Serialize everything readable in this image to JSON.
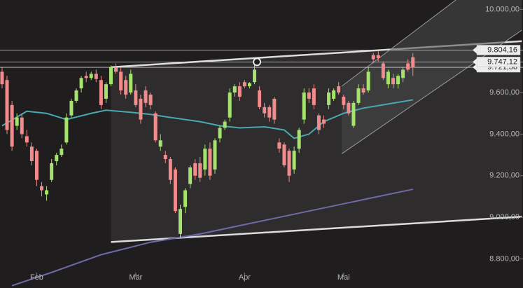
{
  "chart_data": {
    "type": "candlestick",
    "background": "#1f1d1d",
    "up_color": "#a6e36e",
    "down_color": "#f28b8b",
    "categories": [
      null,
      null,
      null,
      null,
      null,
      null,
      null,
      "Feb",
      null,
      null,
      null,
      null,
      null,
      null,
      null,
      null,
      null,
      null,
      null,
      null,
      null,
      null,
      null,
      null,
      null,
      null,
      null,
      "Mär",
      null,
      null,
      null,
      null,
      null,
      null,
      null,
      null,
      null,
      null,
      null,
      null,
      null,
      null,
      null,
      null,
      null,
      null,
      null,
      null,
      null,
      "Apr",
      null,
      null,
      null,
      null,
      null,
      null,
      null,
      null,
      null,
      null,
      null,
      null,
      null,
      null,
      null,
      null,
      null,
      null,
      null,
      "Mai",
      null,
      null,
      null,
      null,
      null,
      null,
      null,
      null,
      null,
      null,
      null,
      null,
      null,
      null
    ],
    "open": [
      9700,
      9660,
      9540,
      9440,
      9480,
      9390,
      9340,
      9320,
      9150,
      9110,
      9180,
      9270,
      9300,
      9360,
      9490,
      9560,
      9620,
      9680,
      9670,
      9690,
      9660,
      9570,
      9640,
      9720,
      9700,
      9660,
      9600,
      9610,
      9570,
      9610,
      9590,
      9500,
      9340,
      9300,
      9280,
      9230,
      8920,
      9050,
      9160,
      9260,
      9260,
      9230,
      9330,
      9230,
      9380,
      9430,
      9480,
      9600,
      9630,
      9650,
      9630,
      9650,
      9610,
      9530,
      9530,
      9570,
      9360,
      9350,
      9320,
      9230,
      9330,
      9470,
      9600,
      9620,
      9490,
      9470,
      9540,
      9570,
      9630,
      9580,
      9550,
      9440,
      9550,
      9620,
      9610,
      9780,
      9780,
      9740,
      9640,
      9670,
      9640,
      9670,
      9740,
      9770
    ],
    "high": [
      9720,
      9680,
      9560,
      9500,
      9500,
      9420,
      9360,
      9330,
      9170,
      9150,
      9280,
      9310,
      9350,
      9500,
      9570,
      9620,
      9680,
      9700,
      9700,
      9710,
      9680,
      9650,
      9730,
      9740,
      9720,
      9680,
      9710,
      9640,
      9590,
      9630,
      9600,
      9510,
      9400,
      9320,
      9290,
      9240,
      9060,
      9140,
      9250,
      9280,
      9290,
      9350,
      9360,
      9380,
      9440,
      9470,
      9620,
      9640,
      9650,
      9660,
      9650,
      9760,
      9630,
      9550,
      9540,
      9580,
      9380,
      9360,
      9330,
      9340,
      9430,
      9620,
      9620,
      9640,
      9500,
      9490,
      9620,
      9620,
      9650,
      9590,
      9560,
      9560,
      9640,
      9640,
      9720,
      9790,
      9800,
      9750,
      9710,
      9690,
      9690,
      9720,
      9760,
      9790
    ],
    "low": [
      9620,
      9400,
      9320,
      9420,
      9380,
      9340,
      9250,
      9150,
      9100,
      9080,
      9170,
      9250,
      9290,
      9350,
      9480,
      9550,
      9600,
      9650,
      9660,
      9650,
      9520,
      9550,
      9630,
      9690,
      9590,
      9570,
      9590,
      9530,
      9450,
      9530,
      9520,
      9360,
      9320,
      9260,
      9160,
      9020,
      8900,
      9020,
      9140,
      9180,
      9170,
      9200,
      9180,
      9210,
      9360,
      9420,
      9460,
      9580,
      9560,
      9620,
      9620,
      9640,
      9520,
      9480,
      9460,
      9450,
      9310,
      9240,
      9170,
      9210,
      9310,
      9450,
      9550,
      9520,
      9400,
      9430,
      9520,
      9560,
      9590,
      9520,
      9490,
      9430,
      9540,
      9590,
      9600,
      9740,
      9750,
      9660,
      9620,
      9620,
      9620,
      9650,
      9700,
      9680
    ],
    "close": [
      9640,
      9420,
      9340,
      9480,
      9400,
      9360,
      9270,
      9180,
      9130,
      9130,
      9260,
      9300,
      9330,
      9480,
      9560,
      9610,
      9670,
      9670,
      9690,
      9665,
      9540,
      9640,
      9720,
      9700,
      9610,
      9590,
      9690,
      9540,
      9470,
      9550,
      9540,
      9370,
      9370,
      9280,
      9180,
      9030,
      9040,
      9130,
      9240,
      9200,
      9190,
      9330,
      9200,
      9370,
      9430,
      9460,
      9600,
      9630,
      9580,
      9630,
      9645,
      9710,
      9530,
      9500,
      9480,
      9470,
      9330,
      9250,
      9200,
      9320,
      9420,
      9600,
      9570,
      9540,
      9420,
      9450,
      9600,
      9610,
      9600,
      9540,
      9500,
      9550,
      9620,
      9600,
      9700,
      9760,
      9765,
      9670,
      9700,
      9640,
      9680,
      9710,
      9710,
      9720
    ],
    "lines": [
      {
        "color": "#4aa9b0",
        "x": [
          0,
          5,
          9,
          13,
          18,
          21,
          26,
          30,
          34,
          40,
          44,
          48,
          53,
          57,
          59,
          62,
          65,
          69,
          73,
          78,
          83
        ],
        "values": [
          9440,
          9510,
          9500,
          9470,
          9500,
          9515,
          9505,
          9495,
          9480,
          9460,
          9440,
          9430,
          9435,
          9420,
          9380,
          9400,
          9460,
          9500,
          9525,
          9545,
          9565
        ]
      },
      {
        "color": "#6e6aa8",
        "x": [
          2,
          10,
          20,
          30,
          40,
          50,
          60,
          70,
          83
        ],
        "values": [
          8671,
          8735,
          8820,
          8880,
          8920,
          8970,
          9020,
          9070,
          9135
        ]
      }
    ],
    "channels": [
      {
        "fill": "#3a3939",
        "stroke": "#dcdcdc",
        "upper": {
          "x": [
            22,
            105
          ],
          "values": [
            9722,
            9847
          ]
        },
        "lower": {
          "x": [
            22,
            105
          ],
          "values": [
            8881,
            9003
          ]
        }
      },
      {
        "fill": "#4a4a4a",
        "stroke": "#9a9a9a",
        "upper": {
          "x": [
            68.6,
            105
          ],
          "values": [
            9630,
            10285
          ]
        },
        "lower": {
          "x": [
            68.6,
            105
          ],
          "values": [
            9305,
            9900
          ]
        }
      }
    ],
    "levels": [
      {
        "value": 9804.16,
        "label": "9.804,16"
      },
      {
        "value": 9721.36,
        "label": "9.721,36"
      },
      {
        "value": 9747.12,
        "label": "9.747,12"
      }
    ],
    "marker": {
      "x": 51.5,
      "value": 9747.12
    },
    "xlim": [
      -0.42,
      105.24
    ],
    "ylim": [
      8660,
      10045
    ],
    "yticks": [
      {
        "value": 8800,
        "label": "8.800,00"
      },
      {
        "value": 9000,
        "label": "9.000,00"
      },
      {
        "value": 9200,
        "label": "9.200,00"
      },
      {
        "value": 9400,
        "label": "9.400,00"
      },
      {
        "value": 9600,
        "label": "9.600,00"
      },
      {
        "value": 10000,
        "label": "10.000,00"
      }
    ]
  }
}
